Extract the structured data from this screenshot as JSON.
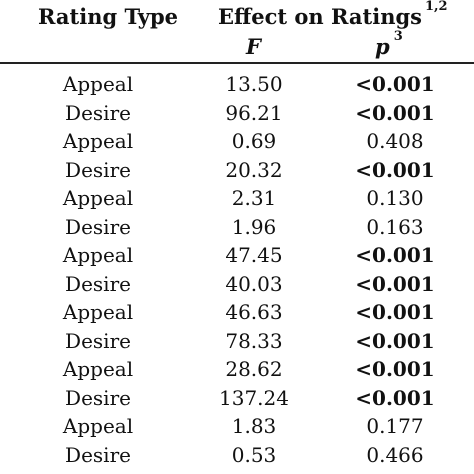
{
  "header": {
    "rating_type": "Rating Type",
    "effect": "Effect on Ratings",
    "effect_sup": "1,2",
    "f_label": "F",
    "p_label": "p",
    "p_sup": "3"
  },
  "rows": [
    {
      "type": "Appeal",
      "f": "13.50",
      "p": "<0.001",
      "sig": true
    },
    {
      "type": "Desire",
      "f": "96.21",
      "p": "<0.001",
      "sig": true
    },
    {
      "type": "Appeal",
      "f": "0.69",
      "p": "0.408",
      "sig": false
    },
    {
      "type": "Desire",
      "f": "20.32",
      "p": "<0.001",
      "sig": true
    },
    {
      "type": "Appeal",
      "f": "2.31",
      "p": "0.130",
      "sig": false
    },
    {
      "type": "Desire",
      "f": "1.96",
      "p": "0.163",
      "sig": false
    },
    {
      "type": "Appeal",
      "f": "47.45",
      "p": "<0.001",
      "sig": true
    },
    {
      "type": "Desire",
      "f": "40.03",
      "p": "<0.001",
      "sig": true
    },
    {
      "type": "Appeal",
      "f": "46.63",
      "p": "<0.001",
      "sig": true
    },
    {
      "type": "Desire",
      "f": "78.33",
      "p": "<0.001",
      "sig": true
    },
    {
      "type": "Appeal",
      "f": "28.62",
      "p": "<0.001",
      "sig": true
    },
    {
      "type": "Desire",
      "f": "137.24",
      "p": "<0.001",
      "sig": true
    },
    {
      "type": "Appeal",
      "f": "1.83",
      "p": "0.177",
      "sig": false
    },
    {
      "type": "Desire",
      "f": "0.53",
      "p": "0.466",
      "sig": false
    }
  ]
}
